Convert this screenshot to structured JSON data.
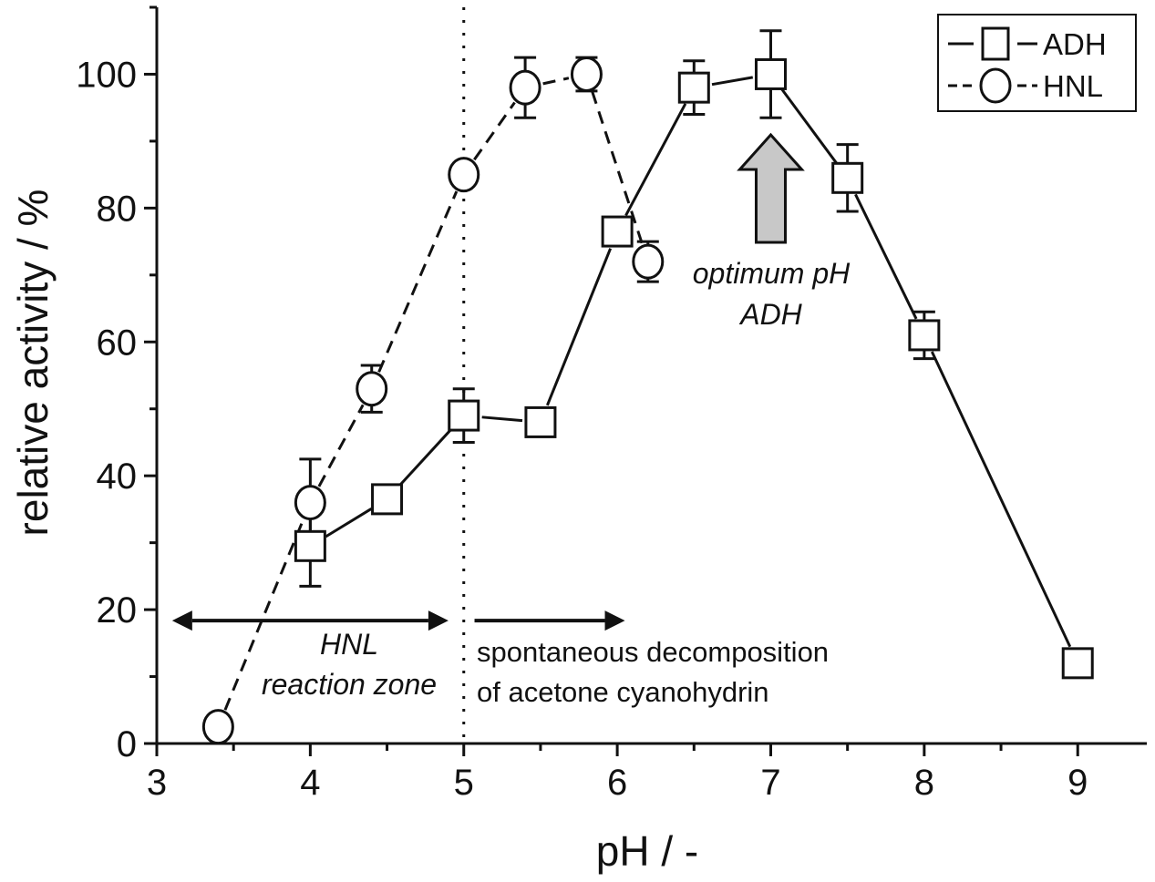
{
  "chart_data": {
    "type": "line",
    "xlabel": "pH / -",
    "ylabel": "relative activity / %",
    "xlim": [
      3,
      9.45
    ],
    "ylim": [
      0,
      110
    ],
    "xticks": [
      3,
      4,
      5,
      6,
      7,
      8,
      9
    ],
    "yticks": [
      0,
      20,
      40,
      60,
      80,
      100
    ],
    "grid": false,
    "legend_position": "top-right",
    "series": [
      {
        "name": "ADH",
        "marker": "square",
        "line_style": "solid",
        "x": [
          4.0,
          4.5,
          5.0,
          5.5,
          6.0,
          6.5,
          7.0,
          7.5,
          8.0,
          9.0
        ],
        "y": [
          29.5,
          36.5,
          49,
          48,
          76.5,
          98,
          100,
          84.5,
          61,
          12
        ],
        "err": [
          6,
          2,
          4,
          1.5,
          1,
          4,
          6.5,
          5,
          3.5,
          1.5
        ]
      },
      {
        "name": "HNL",
        "marker": "circle",
        "line_style": "dashed",
        "x": [
          3.4,
          4.0,
          4.4,
          5.0,
          5.4,
          5.8,
          6.2
        ],
        "y": [
          2.5,
          36,
          53,
          85,
          98,
          100,
          72
        ],
        "err": [
          0,
          6.5,
          3.5,
          1,
          4.5,
          2.5,
          3
        ]
      }
    ],
    "annotations": {
      "hnl_zone_line1": "HNL",
      "hnl_zone_line2": "reaction zone",
      "decomposition_line1": "spontaneous decomposition",
      "decomposition_line2": "of acetone cyanohydrin",
      "optimum_line1": "optimum pH",
      "optimum_line2": "ADH"
    },
    "vertical_reference_x": 5.0,
    "hnl_zone_range": [
      3.1,
      4.9
    ],
    "decomposition_arrow_range": [
      5.07,
      6.05
    ],
    "optimum_arrow_x": 7.0,
    "colors": {
      "line": "#111111",
      "marker_fill": "#ffffff",
      "arrow_fill": "#c8c8c8"
    }
  }
}
